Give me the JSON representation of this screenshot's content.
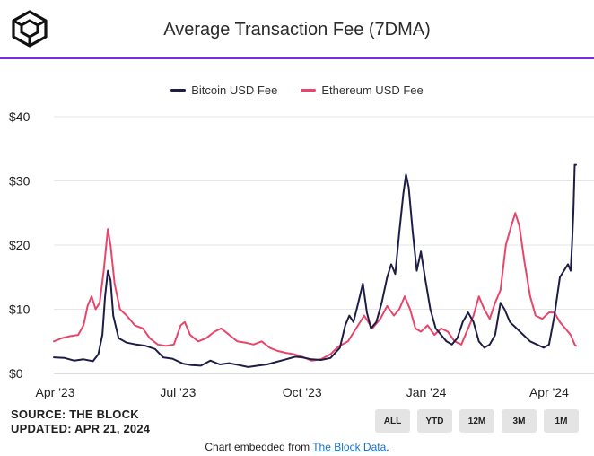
{
  "header": {
    "title": "Average Transaction Fee (7DMA)"
  },
  "legend": {
    "items": [
      {
        "label": "Bitcoin USD Fee",
        "color": "#1e1d45"
      },
      {
        "label": "Ethereum USD Fee",
        "color": "#e8456b"
      }
    ]
  },
  "chart_data": {
    "type": "line",
    "title": "Average Transaction Fee (7DMA)",
    "xlabel": "",
    "ylabel": "",
    "ylim": [
      0,
      40
    ],
    "y_ticks": [
      0,
      10,
      20,
      30,
      40
    ],
    "y_tick_labels": [
      "$0",
      "$10",
      "$20",
      "$30",
      "$40"
    ],
    "x_ticks": [
      "2023-04-01",
      "2023-07-01",
      "2023-10-01",
      "2024-01-01",
      "2024-04-01"
    ],
    "x_tick_labels": [
      "Apr '23",
      "Jul '23",
      "Oct '23",
      "Jan '24",
      "Apr '24"
    ],
    "xlim": [
      "2023-03-31",
      "2024-04-21"
    ],
    "grid": "horizontal",
    "legend_position": "top",
    "series": [
      {
        "name": "Bitcoin USD Fee",
        "color": "#1e1d45",
        "points": [
          [
            "2023-03-31",
            2.5
          ],
          [
            "2023-04-08",
            2.4
          ],
          [
            "2023-04-15",
            2.0
          ],
          [
            "2023-04-22",
            2.2
          ],
          [
            "2023-04-29",
            1.9
          ],
          [
            "2023-05-03",
            3.0
          ],
          [
            "2023-05-06",
            6.0
          ],
          [
            "2023-05-08",
            12.0
          ],
          [
            "2023-05-10",
            16.0
          ],
          [
            "2023-05-12",
            14.5
          ],
          [
            "2023-05-14",
            9.0
          ],
          [
            "2023-05-18",
            5.5
          ],
          [
            "2023-05-24",
            4.8
          ],
          [
            "2023-05-31",
            4.5
          ],
          [
            "2023-06-07",
            4.3
          ],
          [
            "2023-06-14",
            3.8
          ],
          [
            "2023-06-20",
            2.5
          ],
          [
            "2023-06-27",
            2.3
          ],
          [
            "2023-07-05",
            1.5
          ],
          [
            "2023-07-11",
            1.3
          ],
          [
            "2023-07-18",
            1.2
          ],
          [
            "2023-07-25",
            2.0
          ],
          [
            "2023-08-01",
            1.4
          ],
          [
            "2023-08-08",
            1.6
          ],
          [
            "2023-08-15",
            1.3
          ],
          [
            "2023-08-22",
            1.0
          ],
          [
            "2023-08-29",
            1.2
          ],
          [
            "2023-09-05",
            1.4
          ],
          [
            "2023-09-12",
            1.8
          ],
          [
            "2023-09-19",
            2.2
          ],
          [
            "2023-09-26",
            2.6
          ],
          [
            "2023-10-01",
            2.5
          ],
          [
            "2023-10-08",
            2.2
          ],
          [
            "2023-10-15",
            2.1
          ],
          [
            "2023-10-22",
            2.4
          ],
          [
            "2023-10-29",
            4.0
          ],
          [
            "2023-11-02",
            7.5
          ],
          [
            "2023-11-05",
            9.0
          ],
          [
            "2023-11-08",
            8.0
          ],
          [
            "2023-11-11",
            10.5
          ],
          [
            "2023-11-15",
            14.0
          ],
          [
            "2023-11-18",
            9.5
          ],
          [
            "2023-11-21",
            7.0
          ],
          [
            "2023-11-25",
            8.0
          ],
          [
            "2023-11-29",
            11.0
          ],
          [
            "2023-12-03",
            15.0
          ],
          [
            "2023-12-06",
            17.0
          ],
          [
            "2023-12-09",
            15.5
          ],
          [
            "2023-12-12",
            22.0
          ],
          [
            "2023-12-15",
            28.0
          ],
          [
            "2023-12-17",
            31.0
          ],
          [
            "2023-12-19",
            29.0
          ],
          [
            "2023-12-22",
            22.0
          ],
          [
            "2023-12-25",
            16.0
          ],
          [
            "2023-12-28",
            19.0
          ],
          [
            "2023-12-31",
            15.0
          ],
          [
            "2024-01-04",
            10.0
          ],
          [
            "2024-01-08",
            7.0
          ],
          [
            "2024-01-12",
            6.0
          ],
          [
            "2024-01-16",
            5.0
          ],
          [
            "2024-01-20",
            4.5
          ],
          [
            "2024-01-24",
            5.5
          ],
          [
            "2024-01-28",
            8.0
          ],
          [
            "2024-02-01",
            9.5
          ],
          [
            "2024-02-05",
            8.0
          ],
          [
            "2024-02-09",
            5.0
          ],
          [
            "2024-02-13",
            4.0
          ],
          [
            "2024-02-17",
            4.5
          ],
          [
            "2024-02-21",
            6.0
          ],
          [
            "2024-02-25",
            11.0
          ],
          [
            "2024-02-28",
            10.0
          ],
          [
            "2024-03-03",
            8.0
          ],
          [
            "2024-03-08",
            7.0
          ],
          [
            "2024-03-13",
            6.0
          ],
          [
            "2024-03-18",
            5.0
          ],
          [
            "2024-03-23",
            4.5
          ],
          [
            "2024-03-28",
            4.0
          ],
          [
            "2024-04-01",
            4.5
          ],
          [
            "2024-04-05",
            9.0
          ],
          [
            "2024-04-09",
            15.0
          ],
          [
            "2024-04-12",
            16.0
          ],
          [
            "2024-04-15",
            17.0
          ],
          [
            "2024-04-17",
            16.0
          ],
          [
            "2024-04-18",
            20.0
          ],
          [
            "2024-04-19",
            25.0
          ],
          [
            "2024-04-20",
            32.5
          ],
          [
            "2024-04-21",
            32.5
          ]
        ]
      },
      {
        "name": "Ethereum USD Fee",
        "color": "#e8456b",
        "points": [
          [
            "2023-03-31",
            5.0
          ],
          [
            "2023-04-06",
            5.5
          ],
          [
            "2023-04-12",
            5.8
          ],
          [
            "2023-04-18",
            6.0
          ],
          [
            "2023-04-22",
            7.5
          ],
          [
            "2023-04-25",
            10.5
          ],
          [
            "2023-04-28",
            12.0
          ],
          [
            "2023-05-01",
            10.0
          ],
          [
            "2023-05-04",
            11.0
          ],
          [
            "2023-05-07",
            16.0
          ],
          [
            "2023-05-10",
            22.5
          ],
          [
            "2023-05-12",
            20.0
          ],
          [
            "2023-05-15",
            14.0
          ],
          [
            "2023-05-19",
            10.0
          ],
          [
            "2023-05-24",
            9.0
          ],
          [
            "2023-05-30",
            7.5
          ],
          [
            "2023-06-05",
            7.0
          ],
          [
            "2023-06-10",
            5.5
          ],
          [
            "2023-06-16",
            4.5
          ],
          [
            "2023-06-22",
            4.3
          ],
          [
            "2023-06-28",
            4.5
          ],
          [
            "2023-07-03",
            7.5
          ],
          [
            "2023-07-06",
            8.0
          ],
          [
            "2023-07-10",
            6.0
          ],
          [
            "2023-07-16",
            5.0
          ],
          [
            "2023-07-22",
            5.5
          ],
          [
            "2023-07-28",
            6.5
          ],
          [
            "2023-08-02",
            7.0
          ],
          [
            "2023-08-08",
            6.0
          ],
          [
            "2023-08-14",
            5.0
          ],
          [
            "2023-08-20",
            4.8
          ],
          [
            "2023-08-26",
            4.5
          ],
          [
            "2023-09-01",
            5.0
          ],
          [
            "2023-09-07",
            4.0
          ],
          [
            "2023-09-13",
            3.5
          ],
          [
            "2023-09-19",
            3.2
          ],
          [
            "2023-09-25",
            3.0
          ],
          [
            "2023-10-01",
            2.6
          ],
          [
            "2023-10-08",
            2.0
          ],
          [
            "2023-10-15",
            2.2
          ],
          [
            "2023-10-22",
            3.0
          ],
          [
            "2023-10-28",
            4.2
          ],
          [
            "2023-11-04",
            5.0
          ],
          [
            "2023-11-10",
            7.0
          ],
          [
            "2023-11-16",
            9.0
          ],
          [
            "2023-11-22",
            7.0
          ],
          [
            "2023-11-28",
            8.5
          ],
          [
            "2023-12-03",
            10.5
          ],
          [
            "2023-12-08",
            9.0
          ],
          [
            "2023-12-12",
            10.0
          ],
          [
            "2023-12-16",
            12.0
          ],
          [
            "2023-12-20",
            10.0
          ],
          [
            "2023-12-24",
            7.0
          ],
          [
            "2023-12-28",
            6.5
          ],
          [
            "2024-01-02",
            7.5
          ],
          [
            "2024-01-07",
            6.0
          ],
          [
            "2024-01-12",
            7.0
          ],
          [
            "2024-01-17",
            6.5
          ],
          [
            "2024-01-22",
            5.0
          ],
          [
            "2024-01-27",
            4.5
          ],
          [
            "2024-02-01",
            7.0
          ],
          [
            "2024-02-05",
            9.0
          ],
          [
            "2024-02-09",
            12.0
          ],
          [
            "2024-02-13",
            10.0
          ],
          [
            "2024-02-17",
            8.5
          ],
          [
            "2024-02-21",
            11.0
          ],
          [
            "2024-02-25",
            13.0
          ],
          [
            "2024-02-29",
            20.0
          ],
          [
            "2024-03-04",
            23.0
          ],
          [
            "2024-03-07",
            25.0
          ],
          [
            "2024-03-10",
            23.0
          ],
          [
            "2024-03-14",
            17.0
          ],
          [
            "2024-03-18",
            12.0
          ],
          [
            "2024-03-22",
            9.0
          ],
          [
            "2024-03-27",
            8.5
          ],
          [
            "2024-04-01",
            9.5
          ],
          [
            "2024-04-05",
            9.5
          ],
          [
            "2024-04-09",
            8.0
          ],
          [
            "2024-04-13",
            7.0
          ],
          [
            "2024-04-17",
            6.0
          ],
          [
            "2024-04-20",
            4.5
          ],
          [
            "2024-04-21",
            4.3
          ]
        ]
      }
    ]
  },
  "footer": {
    "source": "SOURCE: THE BLOCK",
    "updated": "UPDATED: APR 21, 2024",
    "range_buttons": [
      "ALL",
      "YTD",
      "12M",
      "3M",
      "1M"
    ],
    "embed_prefix": "Chart embedded from ",
    "embed_link": "The Block Data",
    "embed_suffix": "."
  }
}
